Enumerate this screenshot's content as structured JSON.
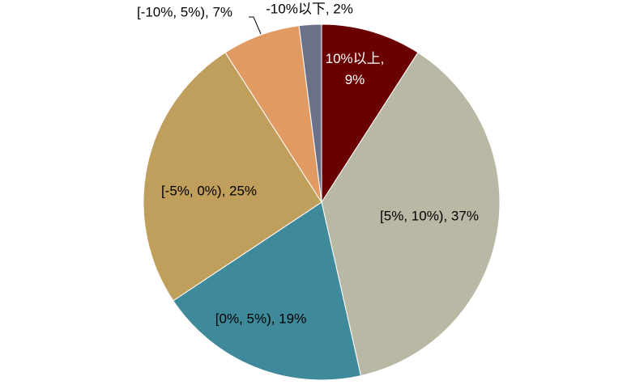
{
  "chart_data": {
    "type": "pie",
    "categories": [
      "10%以上",
      "[5%, 10%)",
      "[0%, 5%)",
      "[-5%, 0%)",
      "[-10%, 5%)",
      "-10%以下"
    ],
    "values": [
      9,
      37,
      19,
      25,
      7,
      2
    ],
    "value_labels": [
      "10%以上, 9%",
      "[5%, 10%), 37%",
      "[0%, 5%), 19%",
      "[-5%, 0%), 25%",
      "[-10%, 5%), 7%",
      "-10%以下, 2%"
    ],
    "colors": [
      "#6b0000",
      "#b9b8a5",
      "#3e899a",
      "#c09e5c",
      "#e09a62",
      "#6b7189"
    ]
  }
}
